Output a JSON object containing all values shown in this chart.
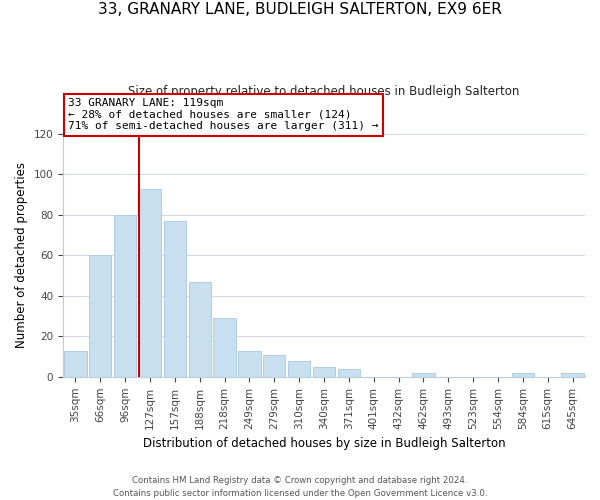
{
  "title": "33, GRANARY LANE, BUDLEIGH SALTERTON, EX9 6ER",
  "subtitle": "Size of property relative to detached houses in Budleigh Salterton",
  "xlabel": "Distribution of detached houses by size in Budleigh Salterton",
  "ylabel": "Number of detached properties",
  "bar_labels": [
    "35sqm",
    "66sqm",
    "96sqm",
    "127sqm",
    "157sqm",
    "188sqm",
    "218sqm",
    "249sqm",
    "279sqm",
    "310sqm",
    "340sqm",
    "371sqm",
    "401sqm",
    "432sqm",
    "462sqm",
    "493sqm",
    "523sqm",
    "554sqm",
    "584sqm",
    "615sqm",
    "645sqm"
  ],
  "bar_values": [
    13,
    60,
    80,
    93,
    77,
    47,
    29,
    13,
    11,
    8,
    5,
    4,
    0,
    0,
    2,
    0,
    0,
    0,
    2,
    0,
    2
  ],
  "bar_color": "#c8dff0",
  "bar_edge_color": "#a8c8e0",
  "vline_color": "#cc0000",
  "ylim": [
    0,
    120
  ],
  "yticks": [
    0,
    20,
    40,
    60,
    80,
    100,
    120
  ],
  "annotation_line1": "33 GRANARY LANE: 119sqm",
  "annotation_line2": "← 28% of detached houses are smaller (124)",
  "annotation_line3": "71% of semi-detached houses are larger (311) →",
  "annotation_box_color": "#ffffff",
  "annotation_box_edge": "#cc0000",
  "footer_line1": "Contains HM Land Registry data © Crown copyright and database right 2024.",
  "footer_line2": "Contains public sector information licensed under the Open Government Licence v3.0.",
  "bg_color": "#ffffff",
  "grid_color": "#ccd9e8"
}
